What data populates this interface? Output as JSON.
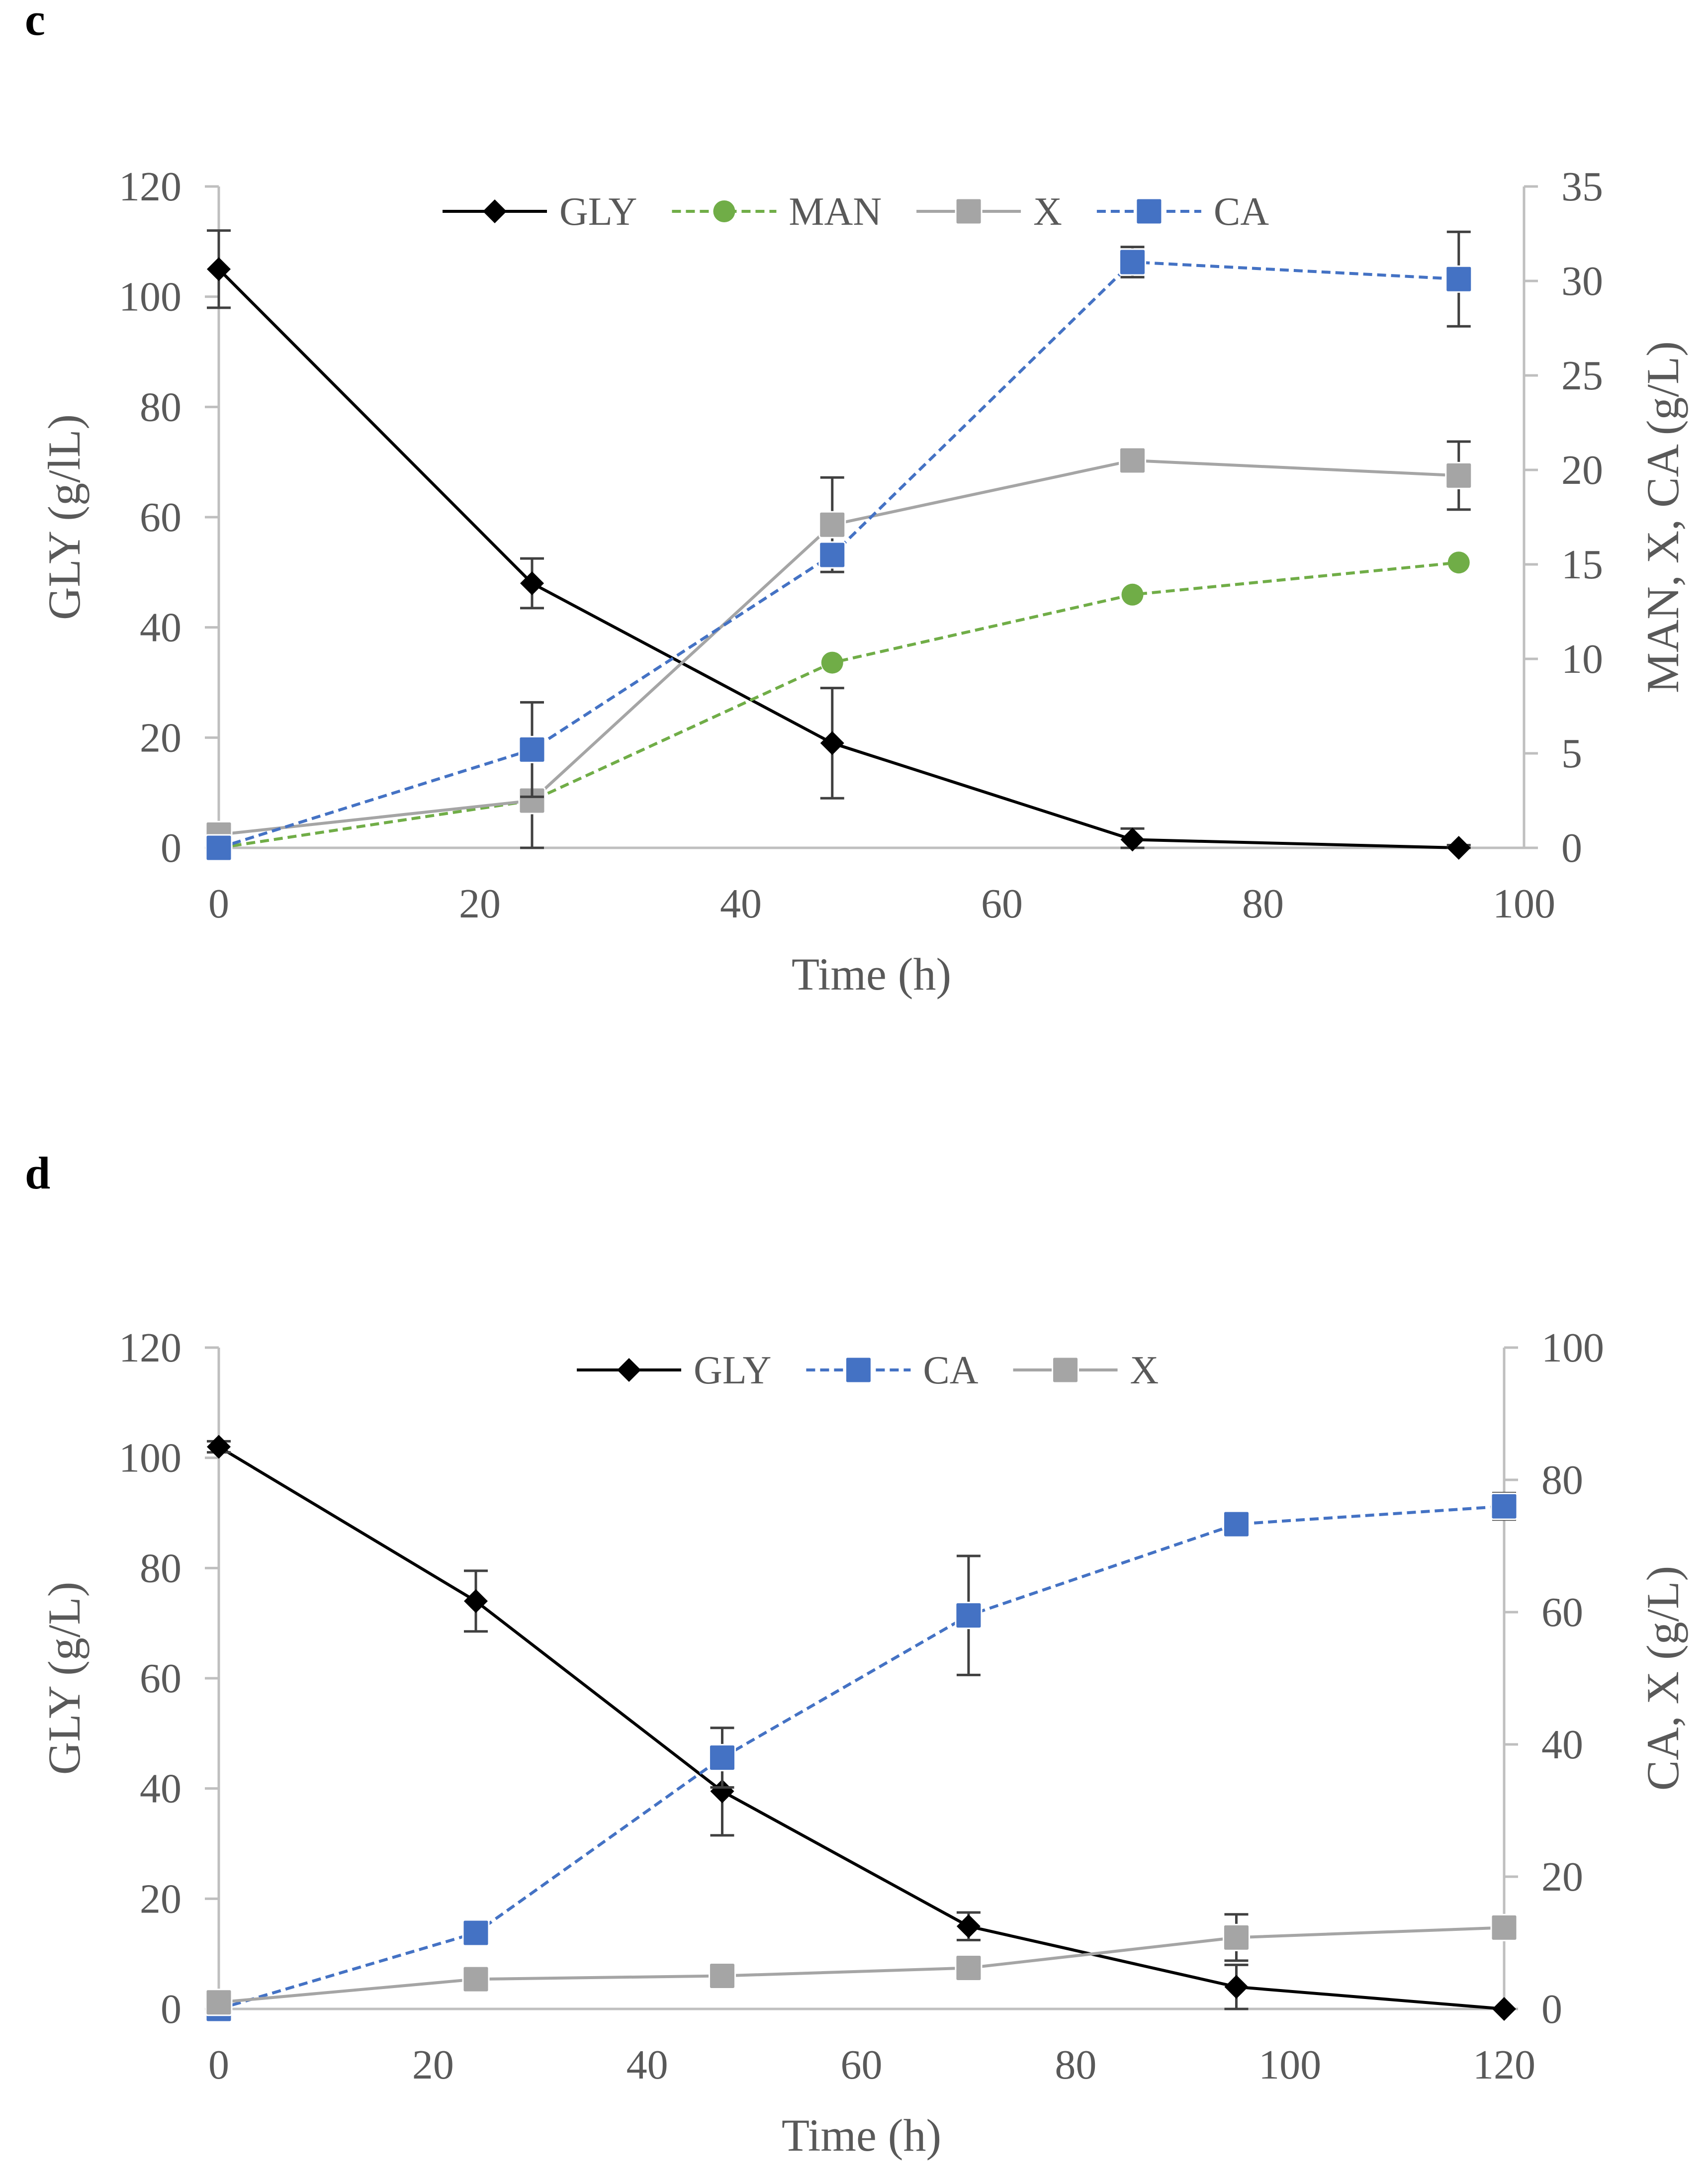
{
  "chart_data": [
    {
      "panel": "c",
      "type": "line",
      "x": [
        0,
        24,
        47,
        70,
        95
      ],
      "xlabel": "Time (h)",
      "xlim": [
        0,
        100
      ],
      "xticks": [
        0,
        20,
        40,
        60,
        80,
        100
      ],
      "ylabel_left": "GLY (g/lL)",
      "ylim_left": [
        0,
        120
      ],
      "yticks_left": [
        0,
        20,
        40,
        60,
        80,
        100,
        120
      ],
      "ylabel_right": "MAN, X, CA (g/L)",
      "ylim_right": [
        0,
        35
      ],
      "yticks_right": [
        0,
        5,
        10,
        15,
        20,
        25,
        30,
        35
      ],
      "series": [
        {
          "name": "GLY",
          "axis": "left",
          "color": "#000000",
          "marker": "diamond",
          "dash": false,
          "values": [
            105,
            48,
            19,
            1.5,
            0
          ],
          "errors": [
            7,
            4.5,
            10,
            2,
            0.5
          ]
        },
        {
          "name": "MAN",
          "axis": "right",
          "color": "#70ad47",
          "marker": "circle",
          "dash": true,
          "values": [
            0,
            2.5,
            9.8,
            13.4,
            15.1
          ],
          "errors": [
            0,
            0,
            0,
            0,
            0
          ]
        },
        {
          "name": "X",
          "axis": "right",
          "color": "#a5a5a5",
          "marker": "square",
          "dash": false,
          "values": [
            0.7,
            2.5,
            17.1,
            20.5,
            19.7
          ],
          "errors": [
            0,
            2.5,
            2.5,
            0.3,
            1.8
          ]
        },
        {
          "name": "CA",
          "axis": "right",
          "color": "#4472c4",
          "marker": "square",
          "dash": true,
          "values": [
            0,
            5.2,
            15.5,
            31,
            30.1
          ],
          "errors": [
            0,
            2.5,
            0,
            0.8,
            2.5
          ]
        }
      ],
      "legend": "top-center"
    },
    {
      "panel": "d",
      "type": "line",
      "x": [
        0,
        24,
        47,
        70,
        95,
        120
      ],
      "xlabel": "Time (h)",
      "xlim": [
        0,
        120
      ],
      "xticks": [
        0,
        20,
        40,
        60,
        80,
        100,
        120
      ],
      "ylabel_left": "GLY (g/L)",
      "ylim_left": [
        0,
        120
      ],
      "yticks_left": [
        0,
        20,
        40,
        60,
        80,
        100,
        120
      ],
      "ylabel_right": "CA, X (g/L)",
      "ylim_right": [
        0,
        100
      ],
      "yticks_right": [
        0,
        20,
        40,
        60,
        80,
        100
      ],
      "series": [
        {
          "name": "GLY",
          "axis": "left",
          "color": "#000000",
          "marker": "diamond",
          "dash": false,
          "values": [
            102,
            74,
            39.5,
            15,
            4,
            0
          ],
          "errors": [
            1,
            5.5,
            8,
            2.5,
            4,
            0
          ]
        },
        {
          "name": "CA",
          "axis": "right",
          "color": "#4472c4",
          "marker": "square",
          "dash": true,
          "values": [
            0,
            11.5,
            38,
            59.5,
            73.3,
            76
          ],
          "errors": [
            0,
            1.5,
            4.5,
            9,
            1.5,
            2
          ]
        },
        {
          "name": "X",
          "axis": "right",
          "color": "#a5a5a5",
          "marker": "square",
          "dash": false,
          "values": [
            1,
            4.5,
            5,
            6.2,
            10.8,
            12.3
          ],
          "errors": [
            0.5,
            0.5,
            1.5,
            1.5,
            3.5,
            0.5
          ]
        }
      ],
      "legend": "top-center"
    }
  ]
}
